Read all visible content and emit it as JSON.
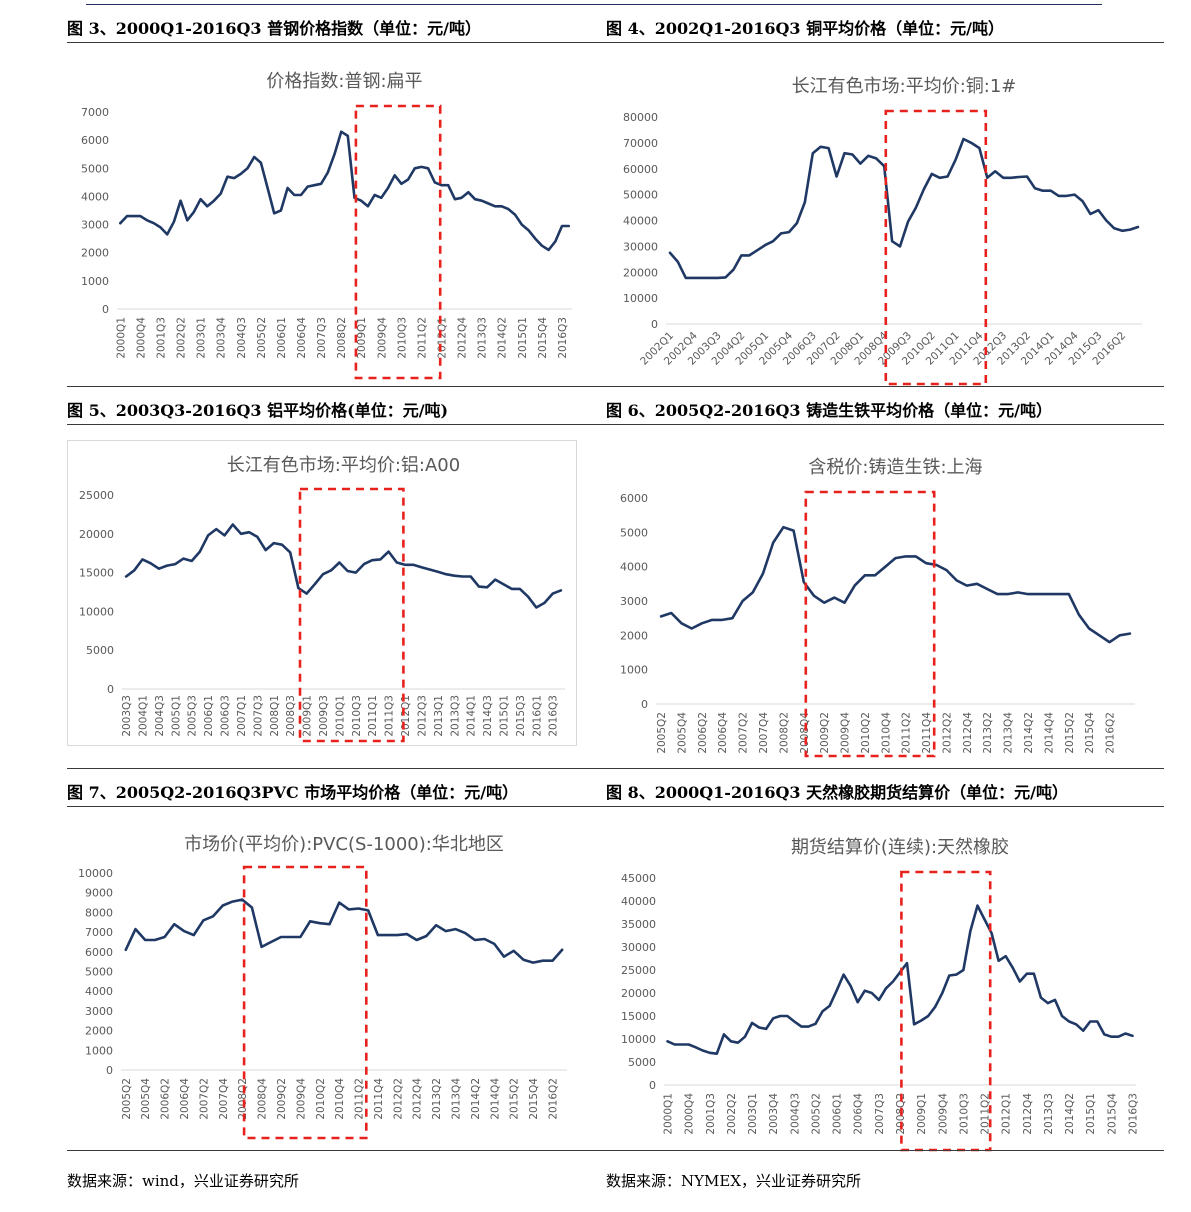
{
  "captions": [
    "图 3、2000Q1-2016Q3 普钢价格指数（单位：元/吨）",
    "图 4、2002Q1-2016Q3 铜平均价格（单位：元/吨）",
    "图 5、2003Q3-2016Q3 铝平均价格(单位：元/吨)",
    "图 6、2005Q2-2016Q3 铸造生铁平均价格（单位：元/吨）",
    "图 7、2005Q2-2016Q3PVC 市场平均价格（单位：元/吨）",
    "图 8、2000Q1-2016Q3 天然橡胶期货结算价（单位：元/吨）"
  ],
  "sources": {
    "left": "数据来源：wind，兴业证券研究所",
    "right": "数据来源：NYMEX，兴业证券研究所"
  },
  "colors": {
    "line": "#1f3864",
    "highlight": "#e8211d",
    "axis": "#d9d9d9",
    "tick_text": "#595959",
    "title_text": "#595959"
  },
  "chart_data": [
    {
      "type": "line",
      "title": "价格指数:普钢:扁平",
      "ylim": [
        0,
        7000
      ],
      "ytick_step": 1000,
      "x_tick_labels": [
        "2000Q1",
        "2000Q4",
        "2001Q3",
        "2002Q2",
        "2003Q1",
        "2003Q4",
        "2004Q3",
        "2005Q2",
        "2006Q1",
        "2006Q4",
        "2007Q3",
        "2008Q2",
        "2009Q1",
        "2009Q4",
        "2010Q3",
        "2011Q2",
        "2012Q1",
        "2012Q4",
        "2013Q3",
        "2014Q2",
        "2015Q1",
        "2015Q4",
        "2016Q3"
      ],
      "x_tick_every": 3,
      "x_label_rotation": -90,
      "series": [
        {
          "values": [
            3050,
            3300,
            3300,
            3300,
            3150,
            3050,
            2900,
            2650,
            3100,
            3850,
            3150,
            3450,
            3900,
            3650,
            3850,
            4100,
            4700,
            4650,
            4800,
            5000,
            5400,
            5200,
            4300,
            3400,
            3500,
            4300,
            4050,
            4050,
            4350,
            4400,
            4450,
            4850,
            5500,
            6300,
            6150,
            3950,
            3850,
            3650,
            4050,
            3950,
            4300,
            4750,
            4450,
            4600,
            5000,
            5050,
            5000,
            4500,
            4400,
            4400,
            3900,
            3950,
            4150,
            3900,
            3850,
            3750,
            3650,
            3650,
            3550,
            3350,
            3000,
            2800,
            2500,
            2250,
            2100,
            2400,
            2950,
            2950
          ]
        }
      ],
      "highlight": {
        "from_index": 36,
        "to_index": 47
      }
    },
    {
      "type": "line",
      "title": "长江有色市场:平均价:铜:1#",
      "ylim": [
        0,
        80000
      ],
      "ytick_step": 10000,
      "x_tick_labels": [
        "2002Q1",
        "2002Q4",
        "2003Q3",
        "2004Q2",
        "2005Q1",
        "2005Q4",
        "2006Q3",
        "2007Q2",
        "2008Q1",
        "2008Q4",
        "2009Q3",
        "2010Q2",
        "2011Q1",
        "2011Q4",
        "2012Q3",
        "2013Q2",
        "2014Q1",
        "2014Q4",
        "2015Q3",
        "2016Q2"
      ],
      "x_tick_every": 3,
      "x_label_rotation": -45,
      "series": [
        {
          "values": [
            27500,
            24000,
            17800,
            17800,
            17800,
            17800,
            17800,
            18000,
            21000,
            26500,
            26500,
            28500,
            30500,
            32000,
            35000,
            35500,
            39000,
            47000,
            66000,
            68500,
            68000,
            57000,
            66000,
            65500,
            62000,
            65000,
            64000,
            61000,
            32000,
            30000,
            39500,
            45000,
            52000,
            58000,
            56500,
            57000,
            63500,
            71500,
            70000,
            68000,
            56500,
            59000,
            56500,
            56500,
            56800,
            57000,
            52500,
            51500,
            51500,
            49500,
            49500,
            50000,
            47500,
            42500,
            44000,
            40000,
            37000,
            36000,
            36500,
            37500
          ]
        }
      ],
      "highlight": {
        "from_index": 28,
        "to_index": 39
      }
    },
    {
      "type": "line",
      "title": "长江有色市场:平均价:铝:A00",
      "ylim": [
        0,
        25000
      ],
      "ytick_step": 5000,
      "x_tick_labels": [
        "2003Q3",
        "2004Q1",
        "2004Q3",
        "2005Q1",
        "2005Q3",
        "2006Q1",
        "2006Q3",
        "2007Q1",
        "2007Q3",
        "2008Q1",
        "2008Q3",
        "2009Q1",
        "2009Q3",
        "2010Q1",
        "2010Q3",
        "2011Q1",
        "2011Q3",
        "2012Q1",
        "2012Q3",
        "2013Q1",
        "2013Q3",
        "2014Q1",
        "2014Q3",
        "2015Q1",
        "2015Q3",
        "2016Q1",
        "2016Q3"
      ],
      "x_tick_every": 2,
      "x_label_rotation": -90,
      "series": [
        {
          "values": [
            14500,
            15300,
            16700,
            16200,
            15500,
            15900,
            16100,
            16800,
            16500,
            17700,
            19800,
            20600,
            19800,
            21200,
            20000,
            20200,
            19600,
            17900,
            18800,
            18600,
            17600,
            13000,
            12300,
            13500,
            14800,
            15300,
            16300,
            15200,
            15000,
            16100,
            16600,
            16700,
            17700,
            16300,
            16000,
            16000,
            15700,
            15400,
            15100,
            14800,
            14600,
            14500,
            14500,
            13200,
            13100,
            14100,
            13500,
            12900,
            12900,
            11900,
            10500,
            11100,
            12300,
            12700
          ]
        }
      ],
      "highlight": {
        "from_index": 22,
        "to_index": 33
      }
    },
    {
      "type": "line",
      "title": "含税价:铸造生铁:上海",
      "ylim": [
        0,
        6000
      ],
      "ytick_step": 1000,
      "x_tick_labels": [
        "2005Q2",
        "2005Q4",
        "2006Q2",
        "2006Q4",
        "2007Q2",
        "2007Q4",
        "2008Q2",
        "2008Q4",
        "2009Q2",
        "2009Q4",
        "2010Q2",
        "2010Q4",
        "2011Q2",
        "2011Q4",
        "2012Q2",
        "2012Q4",
        "2013Q2",
        "2013Q4",
        "2014Q2",
        "2014Q4",
        "2015Q2",
        "2015Q4",
        "2016Q2"
      ],
      "x_tick_every": 2,
      "x_label_rotation": -90,
      "series": [
        {
          "values": [
            2550,
            2650,
            2350,
            2200,
            2350,
            2450,
            2450,
            2500,
            3000,
            3250,
            3800,
            4700,
            5150,
            5050,
            3550,
            3150,
            2950,
            3100,
            2950,
            3450,
            3750,
            3750,
            4000,
            4250,
            4300,
            4300,
            4100,
            4050,
            3900,
            3600,
            3450,
            3500,
            3350,
            3200,
            3200,
            3250,
            3200,
            3200,
            3200,
            3200,
            3200,
            2600,
            2200,
            2000,
            1800,
            2000,
            2050
          ]
        }
      ],
      "highlight": {
        "from_index": 15,
        "to_index": 26
      }
    },
    {
      "type": "line",
      "title": "市场价(平均价):PVC(S-1000):华北地区",
      "ylim": [
        0,
        10000
      ],
      "ytick_step": 1000,
      "x_tick_labels": [
        "2005Q2",
        "2005Q4",
        "2006Q2",
        "2006Q4",
        "2007Q2",
        "2007Q4",
        "2008Q2",
        "2008Q4",
        "2009Q2",
        "2009Q4",
        "2010Q2",
        "2010Q4",
        "2011Q2",
        "2011Q4",
        "2012Q2",
        "2012Q4",
        "2013Q2",
        "2013Q4",
        "2014Q2",
        "2014Q4",
        "2015Q2",
        "2015Q4",
        "2016Q2"
      ],
      "x_tick_every": 2,
      "x_label_rotation": -90,
      "series": [
        {
          "values": [
            6100,
            7150,
            6600,
            6600,
            6750,
            7400,
            7050,
            6850,
            7600,
            7800,
            8350,
            8550,
            8650,
            8250,
            6250,
            6500,
            6750,
            6750,
            6750,
            7550,
            7450,
            7400,
            8500,
            8150,
            8200,
            8100,
            6850,
            6850,
            6850,
            6900,
            6600,
            6800,
            7350,
            7050,
            7150,
            6950,
            6600,
            6650,
            6400,
            5750,
            6050,
            5600,
            5450,
            5550,
            5550,
            6100
          ]
        }
      ],
      "highlight": {
        "from_index": 13,
        "to_index": 24
      }
    },
    {
      "type": "line",
      "title": "期货结算价(连续):天然橡胶",
      "ylim": [
        0,
        45000
      ],
      "ytick_step": 5000,
      "x_tick_labels": [
        "2000Q1",
        "2000Q4",
        "2001Q3",
        "2002Q2",
        "2003Q1",
        "2003Q4",
        "2004Q3",
        "2005Q2",
        "2006Q1",
        "2006Q4",
        "2007Q3",
        "2008Q2",
        "2009Q1",
        "2009Q4",
        "2010Q3",
        "2011Q2",
        "2012Q1",
        "2012Q4",
        "2013Q3",
        "2014Q2",
        "2015Q1",
        "2015Q4",
        "2016Q3"
      ],
      "x_tick_every": 3,
      "x_label_rotation": -90,
      "series": [
        {
          "values": [
            9500,
            8800,
            8800,
            8800,
            8200,
            7500,
            7000,
            6800,
            11000,
            9500,
            9200,
            10500,
            13500,
            12500,
            12200,
            14500,
            15000,
            15000,
            13800,
            12700,
            12700,
            13300,
            16000,
            17200,
            20500,
            24000,
            21500,
            18000,
            20500,
            20000,
            18500,
            21000,
            22500,
            24500,
            26500,
            13200,
            14000,
            15000,
            17000,
            20000,
            23800,
            24000,
            25000,
            33500,
            39000,
            36000,
            33000,
            27000,
            28000,
            25500,
            22500,
            24200,
            24200,
            19000,
            17800,
            18500,
            15000,
            13800,
            13200,
            11800,
            13800,
            13800,
            11000,
            10500,
            10500,
            11200,
            10700
          ]
        }
      ],
      "highlight": {
        "from_index": 34,
        "to_index": 45
      }
    }
  ]
}
